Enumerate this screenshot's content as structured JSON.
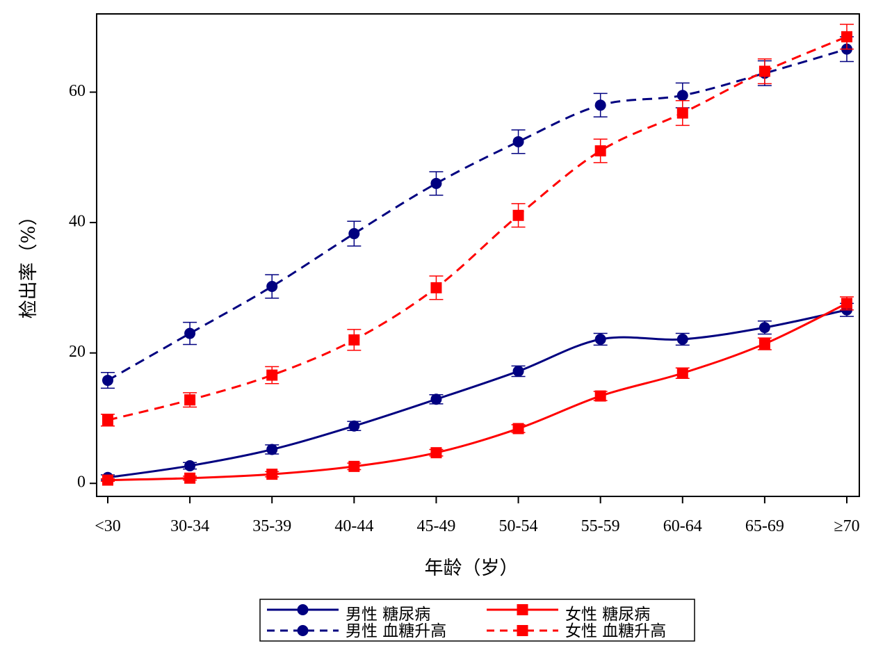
{
  "chart_data": {
    "type": "line",
    "xlabel": "年龄（岁）",
    "ylabel": "检出率（%）",
    "categories": [
      "<30",
      "30-34",
      "35-39",
      "40-44",
      "45-49",
      "50-54",
      "55-59",
      "60-64",
      "65-69",
      "≥70"
    ],
    "ylim": [
      -2,
      72
    ],
    "yticks": [
      0,
      20,
      40,
      60
    ],
    "grid": false,
    "legend_position": "bottom",
    "series": [
      {
        "name": "男性 糖尿病",
        "color": "#000080",
        "line_style": "solid",
        "marker": "circle",
        "values": [
          0.9,
          2.7,
          5.2,
          8.8,
          12.9,
          17.2,
          22.1,
          22.1,
          23.9,
          26.6
        ],
        "errors": [
          0.4,
          0.5,
          0.7,
          0.7,
          0.7,
          0.8,
          0.9,
          0.9,
          1.0,
          1.0
        ]
      },
      {
        "name": "男性 血糖升高",
        "color": "#000080",
        "line_style": "dashed",
        "marker": "circle",
        "values": [
          15.8,
          23.0,
          30.2,
          38.3,
          46.0,
          52.4,
          58.0,
          59.5,
          62.9,
          66.6
        ],
        "errors": [
          1.2,
          1.7,
          1.8,
          1.9,
          1.8,
          1.8,
          1.8,
          1.9,
          1.9,
          1.9
        ]
      },
      {
        "name": "女性 糖尿病",
        "color": "#ff0000",
        "line_style": "solid",
        "marker": "square",
        "values": [
          0.5,
          0.8,
          1.4,
          2.6,
          4.7,
          8.4,
          13.4,
          16.9,
          21.4,
          27.6
        ],
        "errors": [
          0.2,
          0.3,
          0.4,
          0.5,
          0.5,
          0.6,
          0.7,
          0.8,
          0.9,
          1.0
        ]
      },
      {
        "name": "女性 血糖升高",
        "color": "#ff0000",
        "line_style": "dashed",
        "marker": "square",
        "values": [
          9.7,
          12.8,
          16.6,
          22.0,
          30.0,
          41.1,
          51.0,
          56.8,
          63.2,
          68.5
        ],
        "errors": [
          0.9,
          1.1,
          1.3,
          1.6,
          1.8,
          1.8,
          1.8,
          1.9,
          1.9,
          1.9
        ]
      }
    ]
  }
}
